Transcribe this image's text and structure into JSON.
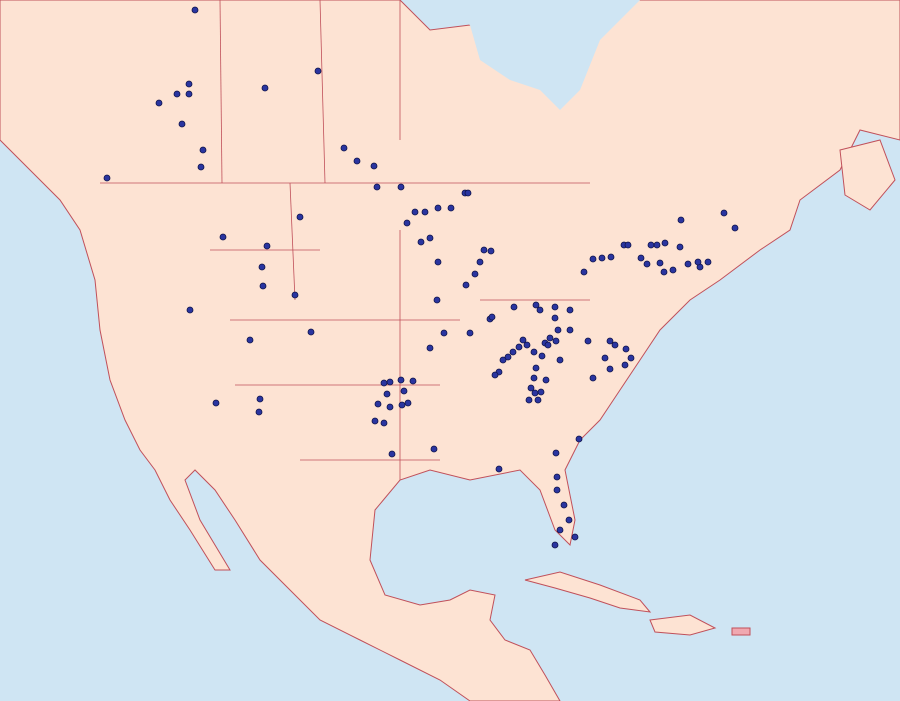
{
  "map": {
    "colors": {
      "water": "#cfe5f3",
      "land": "#fde3d3",
      "border": "#c0505a",
      "county_lines": "#f2b8b8",
      "occurrence_dot": "#2a35a0",
      "dot_outline": "#10144a",
      "highlight_island": "#f0a8b0"
    },
    "layer": "occurrence-records"
  }
}
